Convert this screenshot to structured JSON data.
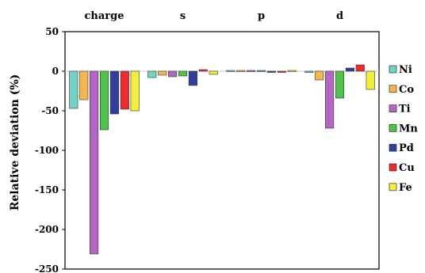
{
  "chart_data": {
    "type": "bar",
    "categories": [
      "charge",
      "s",
      "p",
      "d"
    ],
    "ylabel": "Relative deviation (%)",
    "ylim": [
      -250,
      50
    ],
    "yticks": [
      50,
      0,
      -50,
      -100,
      -150,
      -200,
      -250
    ],
    "grid": false,
    "legend_position": "right",
    "series": [
      {
        "name": "Ni",
        "color": "#6fd3c6",
        "values": [
          -47,
          -8,
          1,
          0
        ]
      },
      {
        "name": "Co",
        "color": "#f7b648",
        "values": [
          -36,
          -5,
          1,
          -11
        ]
      },
      {
        "name": "Ti",
        "color": "#b565c4",
        "values": [
          -231,
          -7,
          1,
          -72
        ]
      },
      {
        "name": "Mn",
        "color": "#4fc24a",
        "values": [
          -74,
          -6,
          1,
          -34
        ]
      },
      {
        "name": "Pd",
        "color": "#2f3f9e",
        "values": [
          -54,
          -18,
          -1,
          4
        ]
      },
      {
        "name": "Cu",
        "color": "#ee2a2a",
        "values": [
          -48,
          2,
          0,
          8
        ]
      },
      {
        "name": "Fe",
        "color": "#f2ee3a",
        "values": [
          -50,
          -4,
          1,
          -23
        ]
      }
    ]
  }
}
